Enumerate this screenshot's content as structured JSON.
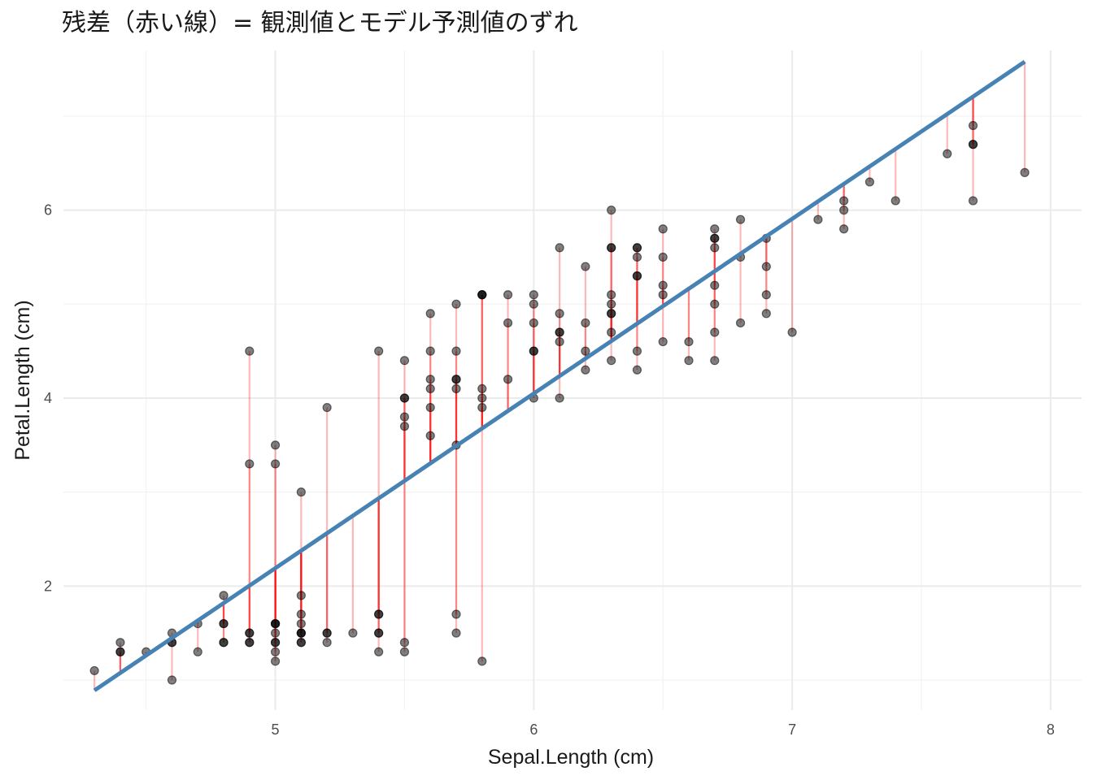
{
  "chart_data": {
    "type": "scatter",
    "title": "残差（赤い線）= 観測値とモデル予測値のずれ",
    "xlabel": "Sepal.Length (cm)",
    "ylabel": "Petal.Length (cm)",
    "xlim": [
      4.18,
      8.12
    ],
    "ylim": [
      0.68,
      7.7
    ],
    "x_ticks": [
      5,
      6,
      7,
      8
    ],
    "x_tick_labels": [
      "5",
      "6",
      "7",
      "8"
    ],
    "y_ticks": [
      2,
      4,
      6
    ],
    "y_tick_labels": [
      "2",
      "4",
      "6"
    ],
    "x_minor_ticks": [
      4.5,
      5.5,
      6.5,
      7.5
    ],
    "y_minor_ticks": [
      1,
      3,
      5,
      7
    ],
    "grid": true,
    "regression_line": {
      "intercept": -7.1014,
      "slope": 1.8584,
      "x_range": [
        4.3,
        7.9
      ],
      "color": "#4682B4"
    },
    "point_color": "#000000",
    "residual_color": "#FF0000",
    "points": [
      [
        5.1,
        1.4
      ],
      [
        4.9,
        1.4
      ],
      [
        4.7,
        1.3
      ],
      [
        4.6,
        1.5
      ],
      [
        5.0,
        1.4
      ],
      [
        5.4,
        1.7
      ],
      [
        4.6,
        1.4
      ],
      [
        5.0,
        1.5
      ],
      [
        4.4,
        1.4
      ],
      [
        4.9,
        1.5
      ],
      [
        5.4,
        1.5
      ],
      [
        4.8,
        1.6
      ],
      [
        4.8,
        1.4
      ],
      [
        4.3,
        1.1
      ],
      [
        5.8,
        1.2
      ],
      [
        5.7,
        1.5
      ],
      [
        5.4,
        1.3
      ],
      [
        5.1,
        1.4
      ],
      [
        5.7,
        1.7
      ],
      [
        5.1,
        1.5
      ],
      [
        5.4,
        1.7
      ],
      [
        5.1,
        1.5
      ],
      [
        4.6,
        1.0
      ],
      [
        5.1,
        1.7
      ],
      [
        4.8,
        1.9
      ],
      [
        5.0,
        1.6
      ],
      [
        5.0,
        1.6
      ],
      [
        5.2,
        1.5
      ],
      [
        5.2,
        1.4
      ],
      [
        4.7,
        1.6
      ],
      [
        4.8,
        1.6
      ],
      [
        5.4,
        1.5
      ],
      [
        5.2,
        1.5
      ],
      [
        5.5,
        1.4
      ],
      [
        4.9,
        1.5
      ],
      [
        5.0,
        1.2
      ],
      [
        5.5,
        1.3
      ],
      [
        4.9,
        1.4
      ],
      [
        4.4,
        1.3
      ],
      [
        5.1,
        1.5
      ],
      [
        5.0,
        1.3
      ],
      [
        4.5,
        1.3
      ],
      [
        4.4,
        1.3
      ],
      [
        5.0,
        1.6
      ],
      [
        5.1,
        1.9
      ],
      [
        4.8,
        1.4
      ],
      [
        5.1,
        1.6
      ],
      [
        4.6,
        1.4
      ],
      [
        5.3,
        1.5
      ],
      [
        5.0,
        1.4
      ],
      [
        7.0,
        4.7
      ],
      [
        6.4,
        4.5
      ],
      [
        6.9,
        4.9
      ],
      [
        5.5,
        4.0
      ],
      [
        6.5,
        4.6
      ],
      [
        5.7,
        4.5
      ],
      [
        6.3,
        4.7
      ],
      [
        4.9,
        3.3
      ],
      [
        6.6,
        4.6
      ],
      [
        5.2,
        3.9
      ],
      [
        5.0,
        3.5
      ],
      [
        5.9,
        4.2
      ],
      [
        6.0,
        4.0
      ],
      [
        6.1,
        4.7
      ],
      [
        5.6,
        3.6
      ],
      [
        6.7,
        4.4
      ],
      [
        5.6,
        4.5
      ],
      [
        5.8,
        4.1
      ],
      [
        6.2,
        4.5
      ],
      [
        5.6,
        3.9
      ],
      [
        5.9,
        4.8
      ],
      [
        6.1,
        4.0
      ],
      [
        6.3,
        4.9
      ],
      [
        6.1,
        4.7
      ],
      [
        6.4,
        4.3
      ],
      [
        6.6,
        4.4
      ],
      [
        6.8,
        4.8
      ],
      [
        6.7,
        5.0
      ],
      [
        6.0,
        4.5
      ],
      [
        5.7,
        3.5
      ],
      [
        5.5,
        3.8
      ],
      [
        5.5,
        3.7
      ],
      [
        5.8,
        3.9
      ],
      [
        6.0,
        5.1
      ],
      [
        5.4,
        4.5
      ],
      [
        6.0,
        4.5
      ],
      [
        6.7,
        4.7
      ],
      [
        6.3,
        4.4
      ],
      [
        5.6,
        4.1
      ],
      [
        5.5,
        4.0
      ],
      [
        5.5,
        4.4
      ],
      [
        6.1,
        4.6
      ],
      [
        5.8,
        4.0
      ],
      [
        5.0,
        3.3
      ],
      [
        5.6,
        4.2
      ],
      [
        5.7,
        4.2
      ],
      [
        5.7,
        4.2
      ],
      [
        6.2,
        4.3
      ],
      [
        5.1,
        3.0
      ],
      [
        5.7,
        4.1
      ],
      [
        6.3,
        6.0
      ],
      [
        5.8,
        5.1
      ],
      [
        7.1,
        5.9
      ],
      [
        6.3,
        5.6
      ],
      [
        6.5,
        5.8
      ],
      [
        7.6,
        6.6
      ],
      [
        4.9,
        4.5
      ],
      [
        7.3,
        6.3
      ],
      [
        6.7,
        5.8
      ],
      [
        7.2,
        6.1
      ],
      [
        6.5,
        5.1
      ],
      [
        6.4,
        5.3
      ],
      [
        6.8,
        5.5
      ],
      [
        5.7,
        5.0
      ],
      [
        5.8,
        5.1
      ],
      [
        6.4,
        5.3
      ],
      [
        6.5,
        5.5
      ],
      [
        7.7,
        6.7
      ],
      [
        7.7,
        6.9
      ],
      [
        6.0,
        5.0
      ],
      [
        6.9,
        5.7
      ],
      [
        5.6,
        4.9
      ],
      [
        7.7,
        6.7
      ],
      [
        6.3,
        4.9
      ],
      [
        6.7,
        5.7
      ],
      [
        7.2,
        6.0
      ],
      [
        6.2,
        4.8
      ],
      [
        6.1,
        4.9
      ],
      [
        6.4,
        5.6
      ],
      [
        7.2,
        5.8
      ],
      [
        7.4,
        6.1
      ],
      [
        7.9,
        6.4
      ],
      [
        6.4,
        5.6
      ],
      [
        6.3,
        5.1
      ],
      [
        6.1,
        5.6
      ],
      [
        7.7,
        6.1
      ],
      [
        6.3,
        5.6
      ],
      [
        6.4,
        5.5
      ],
      [
        6.0,
        4.8
      ],
      [
        6.9,
        5.4
      ],
      [
        6.7,
        5.6
      ],
      [
        6.9,
        5.1
      ],
      [
        5.8,
        5.1
      ],
      [
        6.8,
        5.9
      ],
      [
        6.7,
        5.7
      ],
      [
        6.7,
        5.2
      ],
      [
        6.3,
        5.0
      ],
      [
        6.5,
        5.2
      ],
      [
        6.2,
        5.4
      ],
      [
        5.9,
        5.1
      ]
    ]
  }
}
